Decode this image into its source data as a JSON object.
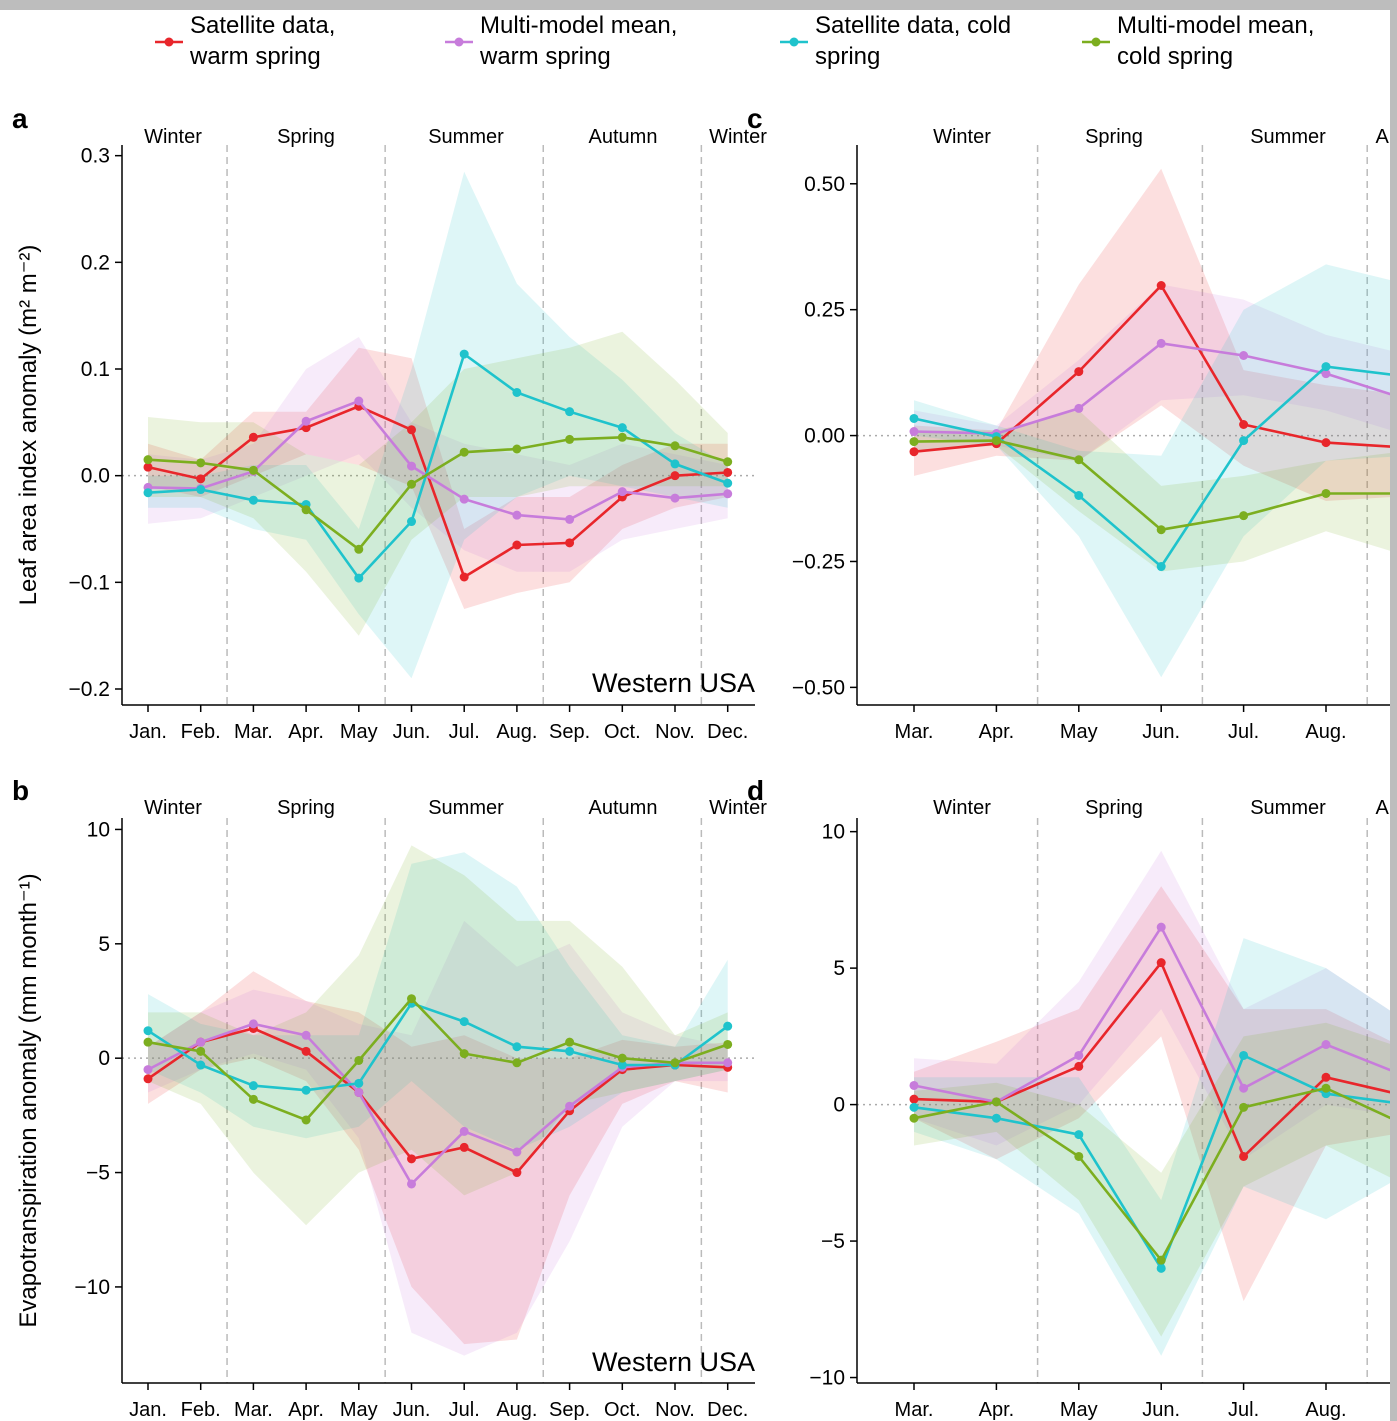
{
  "chart_data": [
    {
      "type": "line",
      "panel": "a",
      "ylabel": "Leaf area index anomaly (m² m⁻²)",
      "annotation": "Western USA",
      "categories": [
        "Jan.",
        "Feb.",
        "Mar.",
        "Apr.",
        "May",
        "Jun.",
        "Jul.",
        "Aug.",
        "Sep.",
        "Oct.",
        "Nov.",
        "Dec."
      ],
      "seasons": [
        "Winter",
        "Spring",
        "Summer",
        "Autumn",
        "Winter"
      ],
      "ylim": [
        -0.215,
        0.31
      ],
      "yticks": [
        0.3,
        0.2,
        0.1,
        {
          "value": 0,
          "label": "0.0"
        },
        {
          "value": -0.1,
          "label": "−0.1"
        },
        {
          "value": -0.2,
          "label": "−0.2"
        }
      ],
      "series": [
        {
          "name": "Satellite data, warm spring",
          "color": "#e8262b",
          "values": [
            0.008,
            -0.003,
            0.036,
            0.045,
            0.065,
            0.043,
            -0.095,
            -0.065,
            -0.063,
            -0.02,
            0.0,
            0.003
          ],
          "lower": [
            -0.01,
            -0.02,
            0.0,
            0.02,
            0.01,
            -0.01,
            -0.125,
            -0.11,
            -0.1,
            -0.05,
            -0.03,
            -0.02
          ],
          "upper": [
            0.03,
            0.015,
            0.06,
            0.06,
            0.12,
            0.11,
            -0.05,
            -0.02,
            -0.02,
            0.01,
            0.03,
            0.03
          ]
        },
        {
          "name": "Multi-model mean, warm spring",
          "color": "#c77cdb",
          "values": [
            -0.011,
            -0.012,
            0.004,
            0.051,
            0.07,
            0.009,
            -0.022,
            -0.037,
            -0.041,
            -0.015,
            -0.021,
            -0.017
          ],
          "lower": [
            -0.045,
            -0.04,
            -0.02,
            0.0,
            0.02,
            -0.03,
            -0.07,
            -0.09,
            -0.09,
            -0.06,
            -0.05,
            -0.04
          ],
          "upper": [
            0.02,
            0.015,
            0.03,
            0.1,
            0.13,
            0.05,
            0.03,
            0.02,
            0.01,
            0.03,
            0.02,
            0.01
          ]
        },
        {
          "name": "Satellite data, cold spring",
          "color": "#1fc3cc",
          "values": [
            -0.016,
            -0.013,
            -0.023,
            -0.027,
            -0.096,
            -0.043,
            0.114,
            0.078,
            0.06,
            0.045,
            0.011,
            -0.007
          ],
          "lower": [
            -0.03,
            -0.03,
            -0.05,
            -0.06,
            -0.13,
            -0.19,
            -0.06,
            -0.02,
            0.0,
            -0.01,
            -0.02,
            -0.03
          ],
          "upper": [
            0.0,
            0.0,
            0.01,
            0.01,
            -0.05,
            0.1,
            0.285,
            0.18,
            0.13,
            0.09,
            0.04,
            0.01
          ]
        },
        {
          "name": "Multi-model mean, cold spring",
          "color": "#7cae1f",
          "values": [
            0.015,
            0.012,
            0.005,
            -0.032,
            -0.069,
            -0.008,
            0.022,
            0.025,
            0.034,
            0.036,
            0.028,
            0.013
          ],
          "lower": [
            -0.02,
            -0.02,
            -0.04,
            -0.09,
            -0.15,
            -0.06,
            -0.02,
            -0.02,
            -0.01,
            -0.01,
            -0.01,
            -0.01
          ],
          "upper": [
            0.055,
            0.05,
            0.05,
            0.02,
            0.01,
            0.05,
            0.1,
            0.11,
            0.12,
            0.135,
            0.09,
            0.04
          ]
        }
      ]
    },
    {
      "type": "line",
      "panel": "b",
      "ylabel": "Evapotranspiration anomaly (mm month⁻¹)",
      "annotation": "Western USA",
      "categories": [
        "Jan.",
        "Feb.",
        "Mar.",
        "Apr.",
        "May",
        "Jun.",
        "Jul.",
        "Aug.",
        "Sep.",
        "Oct.",
        "Nov.",
        "Dec."
      ],
      "seasons": [
        "Winter",
        "Spring",
        "Summer",
        "Autumn",
        "Winter"
      ],
      "ylim": [
        -14.2,
        10.5
      ],
      "yticks": [
        10,
        5,
        0,
        {
          "value": -5,
          "label": "−5"
        },
        {
          "value": -10,
          "label": "−10"
        }
      ],
      "series": [
        {
          "color": "#e8262b",
          "values": [
            -0.9,
            0.7,
            1.3,
            0.3,
            -1.5,
            -4.4,
            -3.9,
            -5.0,
            -2.3,
            -0.5,
            -0.3,
            -0.4
          ],
          "lower": [
            -2,
            -0.5,
            0,
            -1,
            -4,
            -10,
            -12.5,
            -12.3,
            -6,
            -2,
            -1,
            -1.5
          ],
          "upper": [
            0.5,
            2,
            3.8,
            2.5,
            2,
            0.5,
            1,
            0,
            0,
            0.8,
            0.5,
            0.7
          ]
        },
        {
          "color": "#c77cdb",
          "values": [
            -0.5,
            0.7,
            1.5,
            1.0,
            -1.5,
            -5.5,
            -3.2,
            -4.1,
            -2.1,
            -0.4,
            -0.2,
            -0.2
          ],
          "lower": [
            -1.5,
            -0.5,
            0.2,
            -0.5,
            -3.5,
            -12,
            -13,
            -12,
            -8,
            -3,
            -1,
            -1
          ],
          "upper": [
            0.5,
            2,
            3,
            2.5,
            1.5,
            1,
            6,
            4,
            5,
            2,
            1,
            0.5
          ]
        },
        {
          "color": "#1fc3cc",
          "values": [
            1.2,
            -0.3,
            -1.2,
            -1.4,
            -1.1,
            2.4,
            1.6,
            0.5,
            0.3,
            -0.3,
            -0.3,
            1.4
          ],
          "lower": [
            -0.5,
            -1.5,
            -3,
            -3.5,
            -3,
            -1,
            -3,
            -4,
            -3,
            -1.5,
            -1,
            -0.5
          ],
          "upper": [
            2.8,
            1.5,
            1,
            1,
            1,
            8.5,
            9,
            7.5,
            4,
            1,
            0.5,
            4.3
          ]
        },
        {
          "color": "#7cae1f",
          "values": [
            0.7,
            0.3,
            -1.8,
            -2.7,
            -0.1,
            2.6,
            0.2,
            -0.2,
            0.7,
            0.0,
            -0.2,
            0.6
          ],
          "lower": [
            -1,
            -2,
            -5,
            -7.3,
            -5,
            -4,
            -6,
            -5,
            -2,
            -1.5,
            -1,
            -0.5
          ],
          "upper": [
            2,
            2,
            1,
            2,
            4.5,
            9.3,
            8,
            6,
            6,
            4,
            1,
            2
          ]
        }
      ]
    },
    {
      "type": "line",
      "panel": "c",
      "categories": [
        "Mar.",
        "Apr.",
        "May",
        "Jun.",
        "Jul.",
        "Aug.",
        null
      ],
      "seasons": [
        "Winter",
        "Spring",
        "Summer",
        "Autumn"
      ],
      "ylim": [
        -0.535,
        0.577
      ],
      "yticks": [
        {
          "value": 0.5,
          "label": "0.50"
        },
        {
          "value": 0.25,
          "label": "0.25"
        },
        {
          "value": 0,
          "label": "0.00"
        },
        {
          "value": -0.25,
          "label": "−0.25"
        },
        {
          "value": -0.5,
          "label": "−0.50"
        }
      ],
      "series": [
        {
          "color": "#e8262b",
          "values": [
            -0.032,
            -0.016,
            0.127,
            0.298,
            0.022,
            -0.014,
            -0.024
          ],
          "lower": [
            -0.08,
            -0.04,
            -0.05,
            0.06,
            -0.06,
            -0.13,
            -0.12
          ],
          "upper": [
            0.02,
            0.01,
            0.3,
            0.53,
            0.13,
            0.1,
            0.08
          ]
        },
        {
          "color": "#c77cdb",
          "values": [
            0.008,
            0.004,
            0.054,
            0.183,
            0.159,
            0.123,
            0.071
          ],
          "lower": [
            -0.03,
            -0.02,
            -0.05,
            0.07,
            0.08,
            0.05,
            0.0
          ],
          "upper": [
            0.05,
            0.02,
            0.15,
            0.3,
            0.27,
            0.2,
            0.16
          ]
        },
        {
          "color": "#1fc3cc",
          "values": [
            0.034,
            -0.002,
            -0.119,
            -0.26,
            -0.01,
            0.137,
            0.117
          ],
          "lower": [
            0.0,
            -0.02,
            -0.2,
            -0.48,
            -0.2,
            -0.05,
            -0.04
          ],
          "upper": [
            0.07,
            0.02,
            -0.03,
            -0.04,
            0.25,
            0.34,
            0.3
          ]
        },
        {
          "color": "#7cae1f",
          "values": [
            -0.012,
            -0.01,
            -0.048,
            -0.187,
            -0.159,
            -0.115,
            -0.115
          ],
          "lower": [
            -0.03,
            -0.02,
            -0.15,
            -0.27,
            -0.25,
            -0.19,
            -0.24
          ],
          "upper": [
            0.01,
            0.01,
            0.05,
            -0.1,
            -0.08,
            -0.05,
            -0.03
          ]
        }
      ]
    },
    {
      "type": "line",
      "panel": "d",
      "categories": [
        "Mar.",
        "Apr.",
        "May",
        "Jun.",
        "Jul.",
        "Aug.",
        null
      ],
      "seasons": [
        "Winter",
        "Spring",
        "Summer",
        "Autumn"
      ],
      "ylim": [
        -10.2,
        10.5
      ],
      "yticks": [
        10,
        5,
        0,
        {
          "value": -5,
          "label": "−5"
        },
        {
          "value": -10,
          "label": "−10"
        }
      ],
      "series": [
        {
          "color": "#e8262b",
          "values": [
            0.2,
            0.1,
            1.4,
            5.2,
            -1.9,
            1.0,
            0.3
          ],
          "lower": [
            -0.5,
            -2,
            -0.5,
            2.5,
            -7.2,
            -1.5,
            -1
          ],
          "upper": [
            1.2,
            2.3,
            3.5,
            8,
            3.5,
            3.5,
            2
          ]
        },
        {
          "color": "#c77cdb",
          "values": [
            0.7,
            0.1,
            1.8,
            6.5,
            0.6,
            2.2,
            1.0
          ],
          "lower": [
            -0.5,
            -1.5,
            0,
            3.5,
            -2,
            0,
            -0.5
          ],
          "upper": [
            1.7,
            1.5,
            4.5,
            9.3,
            3.5,
            5,
            3
          ]
        },
        {
          "color": "#1fc3cc",
          "values": [
            -0.1,
            -0.5,
            -1.1,
            -6.0,
            1.8,
            0.4,
            0.0
          ],
          "lower": [
            -1,
            -2,
            -4,
            -9.2,
            -3,
            -4.2,
            -2.5
          ],
          "upper": [
            1,
            1,
            1,
            -3.5,
            6.1,
            5,
            3
          ]
        },
        {
          "color": "#7cae1f",
          "values": [
            -0.5,
            0.1,
            -1.9,
            -5.7,
            -0.1,
            0.6,
            -0.8
          ],
          "lower": [
            -1.5,
            -1,
            -3.5,
            -8.5,
            -3,
            -1.5,
            -3
          ],
          "upper": [
            0.5,
            0.8,
            0,
            -2.5,
            2.5,
            3,
            2
          ]
        }
      ]
    }
  ]
}
